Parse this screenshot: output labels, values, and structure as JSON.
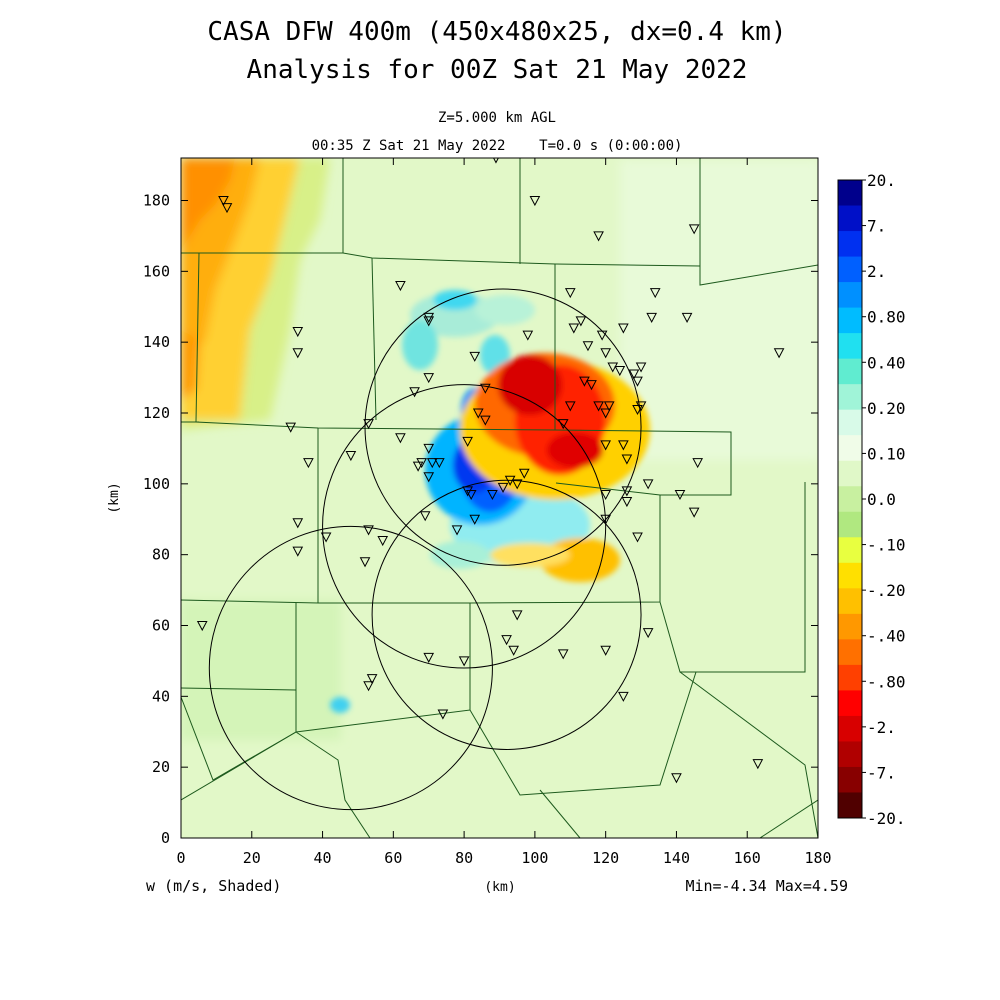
{
  "title_line1": "CASA DFW 400m (450x480x25, dx=0.4 km)",
  "title_line2": "Analysis for 00Z Sat 21 May 2022",
  "subtitle_level": "Z=5.000 km AGL",
  "subtitle_time": "00:35 Z Sat 21 May 2022    T=0.0 s (0:00:00)",
  "field_label": "w (m/s, Shaded)",
  "minmax_label": "Min=-4.34 Max=4.59",
  "chart_data": {
    "type": "heatmap",
    "xlabel": "(km)",
    "ylabel": "(km)",
    "xlim": [
      0,
      180
    ],
    "ylim": [
      0,
      192
    ],
    "x_ticks": [
      0,
      20,
      40,
      60,
      80,
      100,
      120,
      140,
      160,
      180
    ],
    "y_ticks": [
      0,
      20,
      40,
      60,
      80,
      100,
      120,
      140,
      160,
      180
    ],
    "colorbar": {
      "labels": [
        "20.",
        "7.",
        "2.",
        "0.80",
        "0.40",
        "0.20",
        "0.10",
        "0.0",
        "-.10",
        "-.20",
        "-.40",
        "-.80",
        "-2.",
        "-7.",
        "-20."
      ],
      "colors": [
        "#00008c",
        "#0010c8",
        "#0030f0",
        "#0060ff",
        "#0090ff",
        "#00bcff",
        "#20e0f0",
        "#60ecd0",
        "#a0f4d8",
        "#d8fae8",
        "#f0fce8",
        "#e0f8c8",
        "#c8f0a0",
        "#b0e880",
        "#e8ff40",
        "#ffe000",
        "#ffc000",
        "#ff9800",
        "#ff7000",
        "#ff4000",
        "#ff0000",
        "#d80000",
        "#b00000",
        "#880000",
        "#500000"
      ]
    },
    "radar_rings": [
      {
        "center": [
          91,
          116
        ],
        "radius": 39
      },
      {
        "center": [
          80,
          88
        ],
        "radius": 40
      },
      {
        "center": [
          92,
          63
        ],
        "radius": 38
      },
      {
        "center": [
          48,
          48
        ],
        "radius": 40
      }
    ],
    "features": [
      {
        "name": "updraft",
        "center": [
          85,
          104
        ],
        "peak": 4.59
      },
      {
        "name": "downdraft",
        "center": [
          104,
          117
        ],
        "peak": -4.34
      },
      {
        "name": "negative region (west)",
        "center": [
          10,
          158
        ],
        "level": -0.4
      }
    ],
    "stations": [
      [
        12,
        180
      ],
      [
        13,
        178
      ],
      [
        89,
        192
      ],
      [
        100,
        180
      ],
      [
        118,
        170
      ],
      [
        145,
        172
      ],
      [
        62,
        156
      ],
      [
        110,
        154
      ],
      [
        134,
        154
      ],
      [
        33,
        143
      ],
      [
        33,
        137
      ],
      [
        70,
        147
      ],
      [
        70,
        146
      ],
      [
        83,
        136
      ],
      [
        98,
        142
      ],
      [
        113,
        146
      ],
      [
        111,
        144
      ],
      [
        119,
        142
      ],
      [
        125,
        144
      ],
      [
        133,
        147
      ],
      [
        143,
        147
      ],
      [
        115,
        139
      ],
      [
        120,
        137
      ],
      [
        122,
        133
      ],
      [
        124,
        132
      ],
      [
        128,
        131
      ],
      [
        129,
        129
      ],
      [
        130,
        133
      ],
      [
        169,
        137
      ],
      [
        66,
        126
      ],
      [
        70,
        130
      ],
      [
        86,
        127
      ],
      [
        114,
        129
      ],
      [
        116,
        128
      ],
      [
        110,
        122
      ],
      [
        118,
        122
      ],
      [
        121,
        122
      ],
      [
        120,
        120
      ],
      [
        129,
        121
      ],
      [
        130,
        122
      ],
      [
        53,
        117
      ],
      [
        31,
        116
      ],
      [
        62,
        113
      ],
      [
        84,
        120
      ],
      [
        86,
        118
      ],
      [
        81,
        112
      ],
      [
        108,
        117
      ],
      [
        120,
        111
      ],
      [
        125,
        111
      ],
      [
        126,
        107
      ],
      [
        146,
        106
      ],
      [
        36,
        106
      ],
      [
        48,
        108
      ],
      [
        70,
        110
      ],
      [
        68,
        106
      ],
      [
        71,
        106
      ],
      [
        73,
        106
      ],
      [
        67,
        105
      ],
      [
        70,
        102
      ],
      [
        97,
        103
      ],
      [
        93,
        101
      ],
      [
        95,
        100
      ],
      [
        82,
        97
      ],
      [
        81,
        98
      ],
      [
        88,
        97
      ],
      [
        91,
        99
      ],
      [
        120,
        97
      ],
      [
        126,
        98
      ],
      [
        132,
        100
      ],
      [
        141,
        97
      ],
      [
        126,
        95
      ],
      [
        120,
        90
      ],
      [
        129,
        85
      ],
      [
        145,
        92
      ],
      [
        69,
        91
      ],
      [
        78,
        87
      ],
      [
        83,
        90
      ],
      [
        33,
        89
      ],
      [
        33,
        81
      ],
      [
        53,
        87
      ],
      [
        57,
        84
      ],
      [
        41,
        85
      ],
      [
        52,
        78
      ],
      [
        95,
        63
      ],
      [
        92,
        56
      ],
      [
        94,
        53
      ],
      [
        108,
        52
      ],
      [
        120,
        53
      ],
      [
        132,
        58
      ],
      [
        70,
        51
      ],
      [
        80,
        50
      ],
      [
        125,
        40
      ],
      [
        53,
        43
      ],
      [
        54,
        45
      ],
      [
        74,
        35
      ],
      [
        6,
        60
      ],
      [
        140,
        17
      ],
      [
        163,
        21
      ]
    ]
  }
}
